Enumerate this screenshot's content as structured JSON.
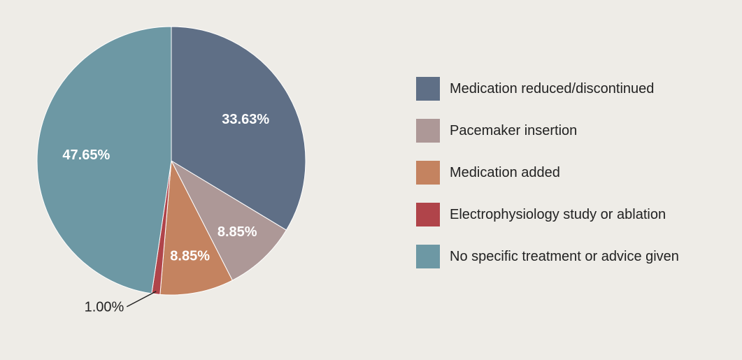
{
  "chart_data": {
    "type": "pie",
    "title": "",
    "legend_position": "right",
    "start_angle_deg": 0,
    "direction": "clockwise",
    "slices": [
      {
        "name": "Medication reduced/discontinued",
        "value": 33.63,
        "label": "33.63%",
        "color": "#5f6f86"
      },
      {
        "name": "Pacemaker insertion",
        "value": 8.85,
        "label": "8.85%",
        "color": "#ad9897"
      },
      {
        "name": "Medication added",
        "value": 8.85,
        "label": "8.85%",
        "color": "#c48360"
      },
      {
        "name": "Electrophysiology study or ablation",
        "value": 1.0,
        "label": "1.00%",
        "color": "#b0444a",
        "label_outside": true
      },
      {
        "name": "No specific treatment or advice given",
        "value": 47.65,
        "label": "47.65%",
        "color": "#6d98a4"
      }
    ]
  }
}
